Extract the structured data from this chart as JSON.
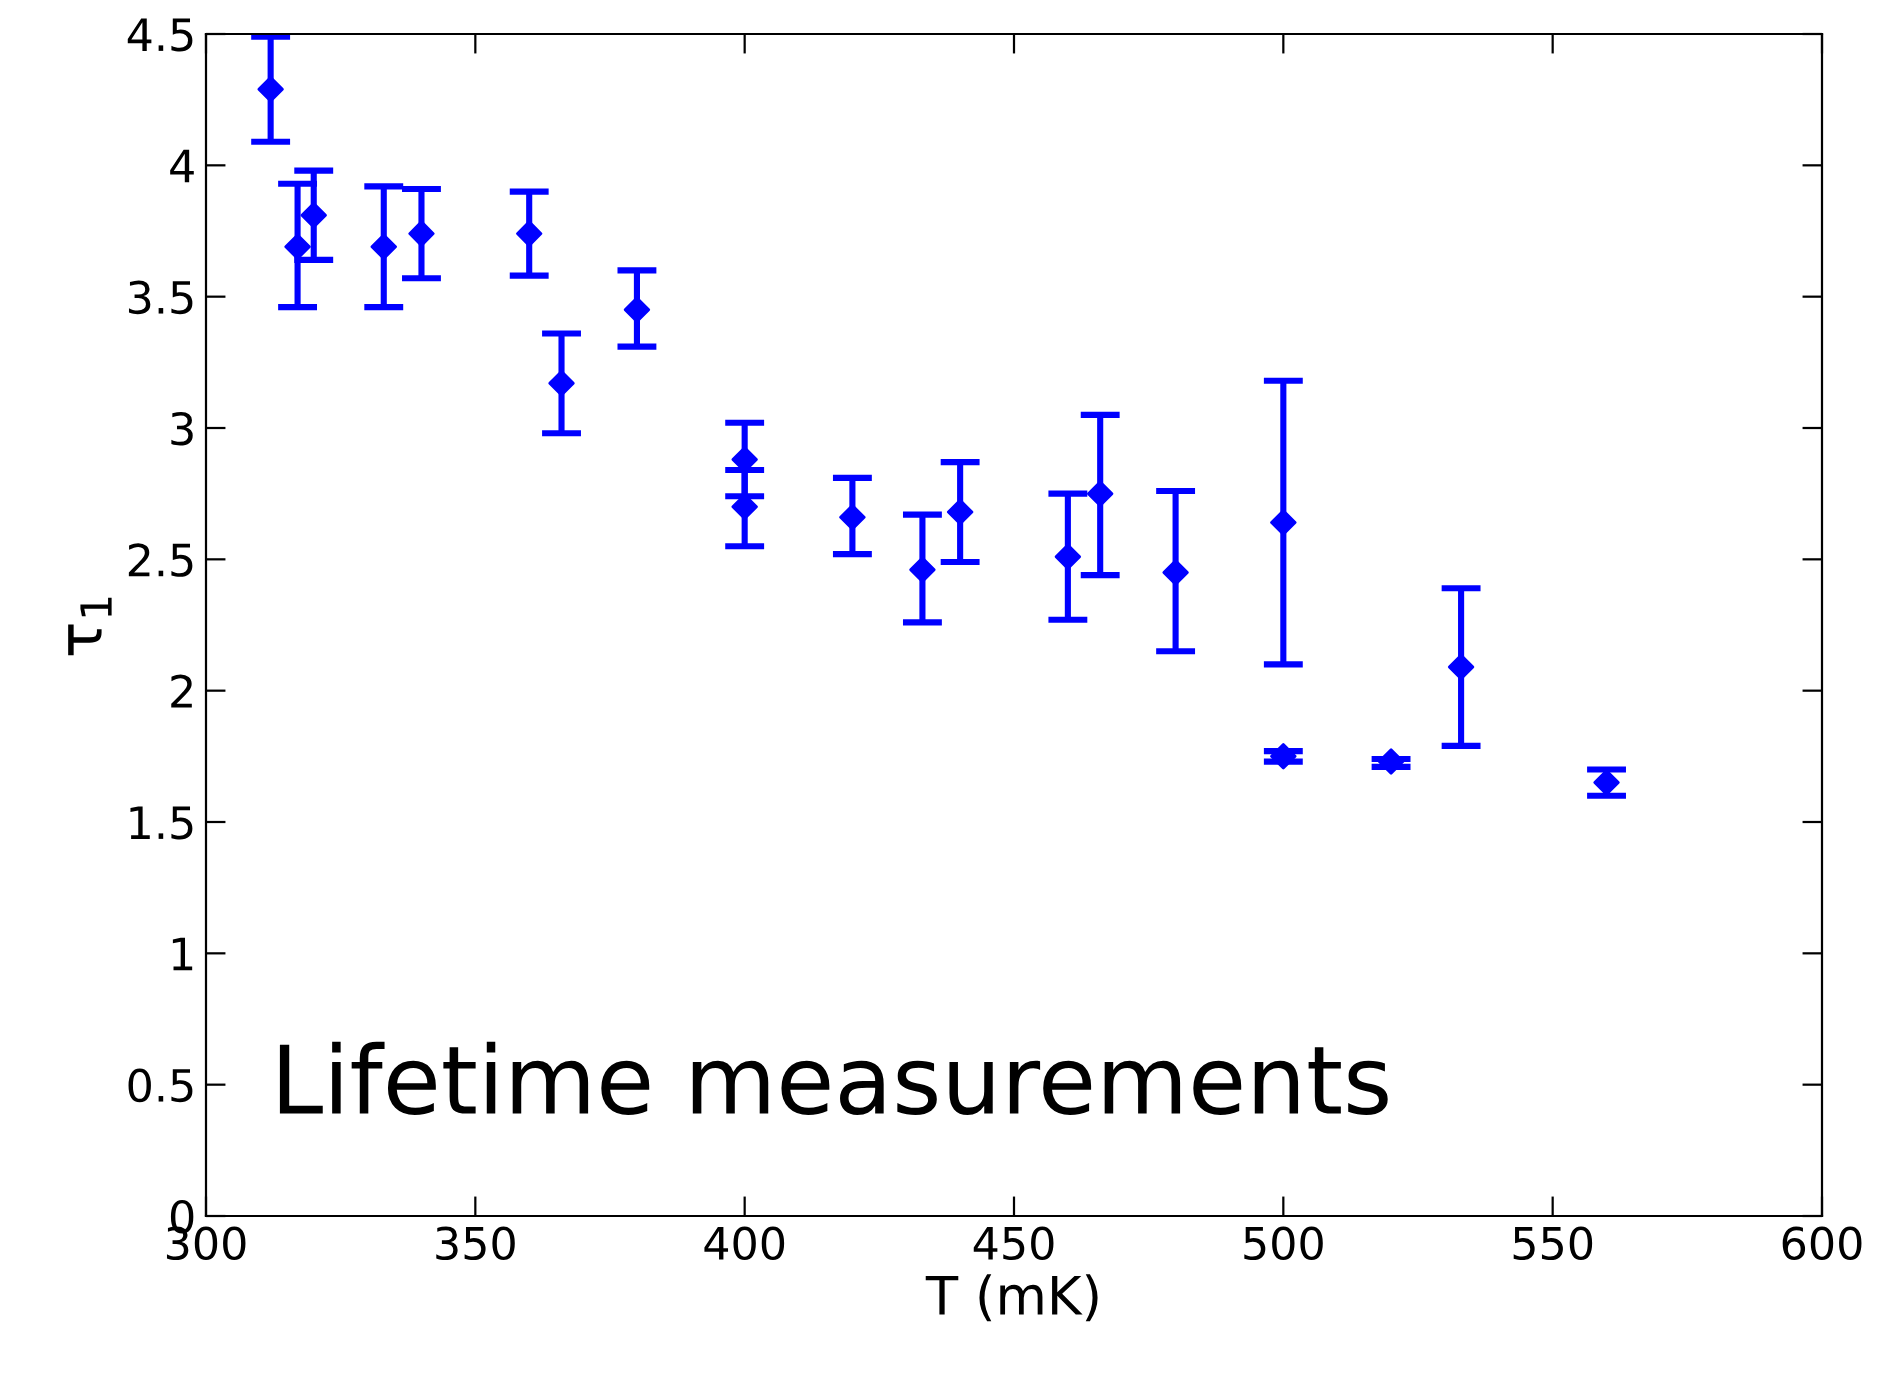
{
  "chart_data": {
    "type": "scatter",
    "xlabel": "T (mK)",
    "ylabel": "τ$_{1}$",
    "annotations": [
      "Lifetime measurements"
    ],
    "x": [
      312,
      317,
      320,
      333,
      340,
      360,
      366,
      380,
      400,
      400,
      420,
      433,
      440,
      460,
      466,
      480,
      500,
      500,
      520,
      533,
      560
    ],
    "series": [
      {
        "color": "#0000ff",
        "values": [
          4.29,
          3.69,
          3.81,
          3.69,
          3.74,
          3.74,
          3.17,
          3.45,
          2.88,
          2.7,
          2.66,
          2.46,
          2.68,
          2.51,
          2.75,
          2.45,
          2.64,
          1.75,
          1.73,
          2.09,
          1.65
        ],
        "errors": [
          [
            4.09,
            4.49
          ],
          [
            3.46,
            3.93
          ],
          [
            3.64,
            3.98
          ],
          [
            3.46,
            3.92
          ],
          [
            3.57,
            3.91
          ],
          [
            3.58,
            3.9
          ],
          [
            2.98,
            3.36
          ],
          [
            3.31,
            3.6
          ],
          [
            2.74,
            3.02
          ],
          [
            2.55,
            2.84
          ],
          [
            2.52,
            2.81
          ],
          [
            2.26,
            2.67
          ],
          [
            2.49,
            2.87
          ],
          [
            2.27,
            2.75
          ],
          [
            2.44,
            3.05
          ],
          [
            2.15,
            2.76
          ],
          [
            2.1,
            3.18
          ],
          [
            1.73,
            1.77
          ],
          [
            1.71,
            1.74
          ],
          [
            1.79,
            2.39
          ],
          [
            1.6,
            1.7
          ]
        ]
      }
    ],
    "xlim": [
      300,
      600
    ],
    "ylim": [
      0,
      4.5
    ],
    "xticks": [
      300,
      350,
      400,
      450,
      500,
      550,
      600
    ],
    "yticks": [
      0,
      0.5,
      1,
      1.5,
      2,
      2.5,
      3,
      3.5,
      4,
      4.5
    ],
    "marker": "diamond",
    "grid": false
  }
}
